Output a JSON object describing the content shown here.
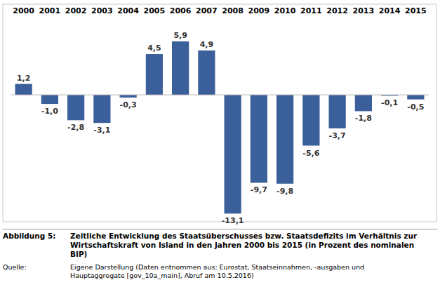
{
  "chart_data": {
    "type": "bar",
    "title": "Zeitliche Entwicklung des Staatsüberschusses bzw. Staatsdefizits im Verhältnis zur Wirtschaftskraft von Island in den Jahren 2000 bis 2015 (in Prozent des nominalen BIP)",
    "figure_label": "Abbildung 5:",
    "source_label": "Quelle:",
    "source": "Eigene Darstellung (Daten entnommen aus: Eurostat, Staatseinnahmen, -ausgaben und Hauptaggregate [gov_10a_main], Abruf am 10.5.2016)",
    "categories": [
      "2000",
      "2001",
      "2002",
      "2003",
      "2004",
      "2005",
      "2006",
      "2007",
      "2008",
      "2009",
      "2010",
      "2011",
      "2012",
      "2013",
      "2014",
      "2015"
    ],
    "values": [
      1.2,
      -1.0,
      -2.8,
      -3.1,
      -0.3,
      4.5,
      5.9,
      4.9,
      -13.1,
      -9.7,
      -9.8,
      -5.6,
      -3.7,
      -1.8,
      -0.1,
      -0.5
    ],
    "value_labels": [
      "1,2",
      "-1,0",
      "-2,8",
      "-3,1",
      "-0,3",
      "4,5",
      "5,9",
      "4,9",
      "-13,1",
      "-9,7",
      "-9,8",
      "-5,6",
      "-3,7",
      "-1,8",
      "-0,1",
      "-0,5"
    ],
    "color": "#3b5f9a",
    "ylim": [
      -14,
      10
    ],
    "grid": false,
    "data_labels": true,
    "tick_labels": "x"
  }
}
